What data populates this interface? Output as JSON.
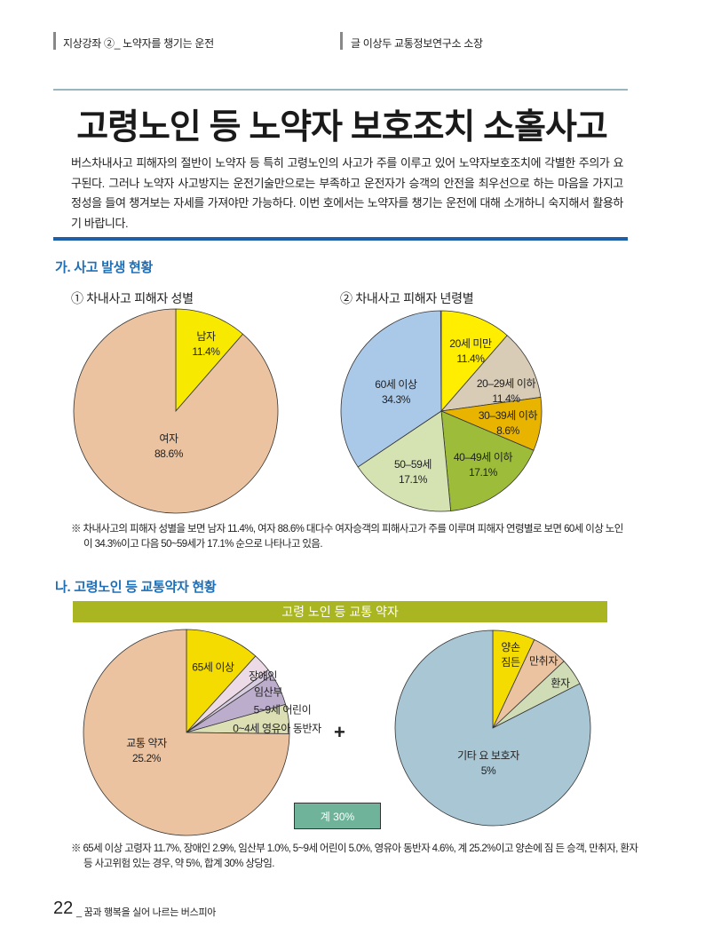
{
  "header": {
    "section": "지상강좌 ②_ 노약자를 챙기는 운전",
    "author": "글 이상두 교통정보연구소 소장"
  },
  "title": "고령노인 등 노약자 보호조치 소홀사고",
  "intro": "버스차내사고 피해자의 절반이 노약자 등 특히 고령노인의 사고가 주를 이루고 있어 노약자보호조치에 각별한 주의가 요구된다. 그러나 노약자 사고방지는 운전기술만으로는 부족하고 운전자가 승객의 안전을 최우선으로 하는 마음을 가지고 정성을 들여 챙겨보는 자세를 가져야만 가능하다. 이번 호에서는 노약자를 챙기는 운전에 대해 소개하니 숙지해서 활용하기 바랍니다.",
  "section1": {
    "heading": "가. 사고 발생 현황",
    "note": "※ 차내사고의 피해자 성별을 보면 남자 11.4%, 여자 88.6% 대다수 여자승객의 피해사고가 주를 이루며 피해자 연령별로 보면 60세 이상 노인이 34.3%이고 다음 50~59세가 17.1% 순으로 나타나고 있음."
  },
  "section2": {
    "heading": "나. 고령노인 등 교통약자 현황",
    "banner": "고령 노인 등 교통 약자",
    "plus": "+",
    "sum_box": "계 30%",
    "note": "※ 65세 이상 고령자 11.7%, 장애인 2.9%, 임산부 1.0%, 5~9세 어린이 5.0%, 영유아 동반자 4.6%, 계 25.2%이고 양손에 짐 든 승객, 만취자, 환자 등 사고위험 있는 경우, 약 5%, 합계 30% 상당임."
  },
  "chart_data": [
    {
      "type": "pie",
      "title": "① 차내사고 피해자 성별",
      "categories": [
        "남자",
        "여자"
      ],
      "values": [
        11.4,
        88.6
      ],
      "value_labels": [
        "11.4%",
        "88.6%"
      ],
      "colors": [
        "#f7ea00",
        "#ecc3a0"
      ]
    },
    {
      "type": "pie",
      "title": "② 차내사고 피해자 년령별",
      "categories": [
        "20세 미만",
        "20–29세 이하",
        "30–39세 이하",
        "40–49세 이하",
        "50–59세",
        "60세 이상"
      ],
      "values": [
        11.4,
        11.4,
        8.6,
        17.1,
        17.1,
        34.3
      ],
      "value_labels": [
        "11.4%",
        "11.4%",
        "8.6%",
        "17.1%",
        "17.1%",
        "34.3%"
      ],
      "colors": [
        "#ffee00",
        "#d8ccb6",
        "#e8b400",
        "#9dbd3a",
        "#d5e3b2",
        "#aac8e8"
      ]
    },
    {
      "type": "pie",
      "categories": [
        "65세 이상",
        "장애인",
        "임산부",
        "5~9세 어린이",
        "0~4세 영유아 동반자"
      ],
      "values": [
        11.7,
        2.9,
        1.0,
        5.0,
        4.6
      ],
      "colors": [
        "#f5dc00",
        "#ecdbe6",
        "#d8cce0",
        "#bcadcc",
        "#dcdfb4"
      ],
      "total": {
        "label": "교통 약자",
        "value": 25.2,
        "value_label": "25.2%",
        "color": "#ecc3a0"
      }
    },
    {
      "type": "pie",
      "categories": [
        "양손\n짐든",
        "만취자",
        "환자"
      ],
      "values": [
        7,
        6,
        4.5
      ],
      "colors": [
        "#f5dc00",
        "#ecc3a0",
        "#cfdcb5"
      ],
      "total": {
        "label": "기타 요 보호자",
        "value": 5,
        "value_label": "5%",
        "color": "#a9c6d4"
      }
    }
  ],
  "footer": {
    "page": "22",
    "text": "_ 꿈과 행복을 실어 나르는 버스피아"
  }
}
